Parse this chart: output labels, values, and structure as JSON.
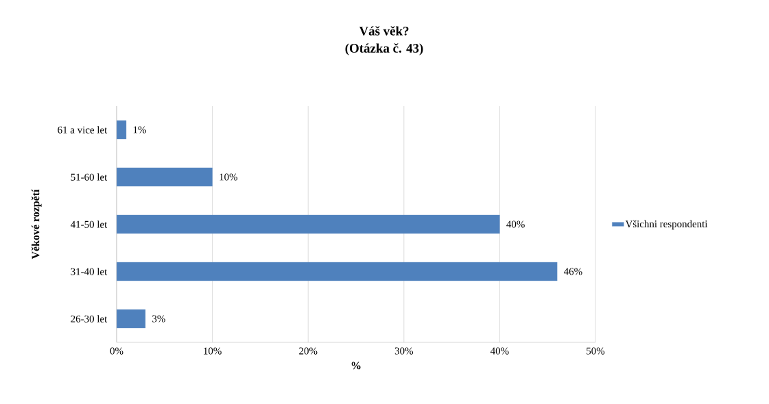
{
  "chart_data": {
    "type": "bar",
    "orientation": "horizontal",
    "title": "Váš věk?",
    "subtitle": "(Otázka č. 43)",
    "xlabel": "%",
    "ylabel": "Věkové rozpětí",
    "categories": [
      "61 a vice let",
      "51-60 let",
      "41-50 let",
      "31-40 let",
      "26-30 let"
    ],
    "series": [
      {
        "name": "Všichni respondenti",
        "color": "#4f81bd",
        "values": [
          1,
          10,
          40,
          46,
          3
        ],
        "value_labels": [
          "1%",
          "10%",
          "40%",
          "46%",
          "3%"
        ]
      }
    ],
    "xlim": [
      0,
      50
    ],
    "xticks": [
      {
        "value": 0,
        "label": "0%"
      },
      {
        "value": 10,
        "label": "10%"
      },
      {
        "value": 20,
        "label": "20%"
      },
      {
        "value": 30,
        "label": "30%"
      },
      {
        "value": 40,
        "label": "40%"
      },
      {
        "value": 50,
        "label": "50%"
      }
    ],
    "grid": "x",
    "legend": "right"
  }
}
